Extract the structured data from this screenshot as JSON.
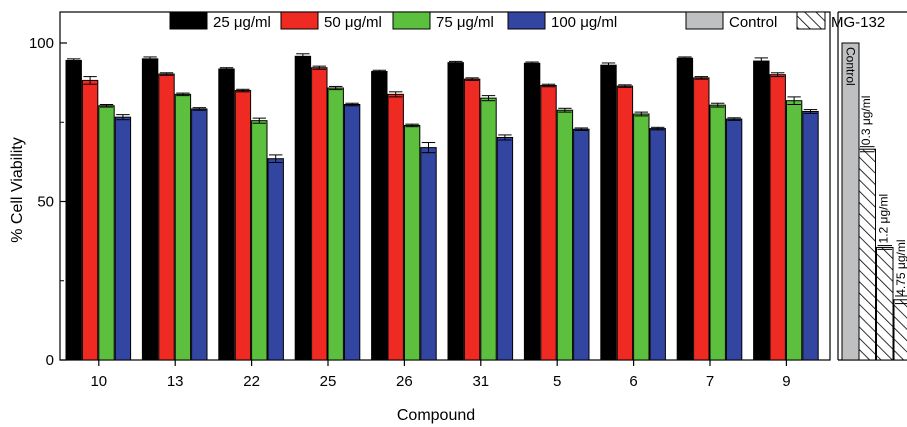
{
  "chart_data": {
    "type": "bar",
    "xlabel": "Compound",
    "ylabel": "% Cell Viability",
    "ylim": [
      0,
      100
    ],
    "yticks": [
      "0",
      "50",
      "100"
    ],
    "grid": false,
    "legend_position": "top",
    "categories": [
      "10",
      "13",
      "22",
      "25",
      "26",
      "31",
      "5",
      "6",
      "7",
      "9"
    ],
    "series": [
      {
        "name": "25 μg/ml",
        "color": "#000000",
        "values": [
          94.5,
          95.0,
          91.8,
          95.8,
          91.0,
          93.8,
          93.6,
          93.0,
          95.2,
          94.3
        ],
        "errors": [
          0.5,
          0.6,
          0.4,
          0.8,
          0.4,
          0.4,
          0.4,
          0.7,
          0.4,
          1.0
        ]
      },
      {
        "name": "50 μg/ml",
        "color": "#ee2a22",
        "values": [
          88.2,
          90.2,
          85.0,
          92.2,
          83.8,
          88.6,
          86.6,
          86.4,
          89.0,
          90.0
        ],
        "errors": [
          1.2,
          0.4,
          0.4,
          0.5,
          0.8,
          0.4,
          0.4,
          0.4,
          0.4,
          0.6
        ]
      },
      {
        "name": "75 μg/ml",
        "color": "#5cbf3e",
        "values": [
          80.2,
          83.8,
          75.5,
          85.8,
          74.0,
          82.6,
          78.8,
          77.6,
          80.4,
          81.8
        ],
        "errors": [
          0.4,
          0.4,
          0.8,
          0.5,
          0.4,
          0.8,
          0.6,
          0.6,
          0.6,
          1.2
        ]
      },
      {
        "name": "100 μg/ml",
        "color": "#3245a0",
        "values": [
          76.6,
          79.2,
          63.5,
          80.6,
          67.0,
          70.2,
          72.8,
          73.0,
          76.0,
          78.4
        ],
        "errors": [
          0.8,
          0.4,
          1.2,
          0.4,
          1.6,
          0.8,
          0.4,
          0.4,
          0.4,
          0.6
        ]
      }
    ],
    "control": {
      "name": "Control",
      "label": "Control",
      "value": 100,
      "color": "#bfc0c2"
    },
    "reference": {
      "name": "MG-132",
      "bars": [
        {
          "label": "0.3 μg/ml",
          "value": 66.5,
          "error": 0.8
        },
        {
          "label": "1.2 μg/ml",
          "value": 35.5,
          "error": 0.6
        },
        {
          "label": "4.75 μg/ml",
          "value": 19.0,
          "error": 1.2
        }
      ]
    }
  }
}
